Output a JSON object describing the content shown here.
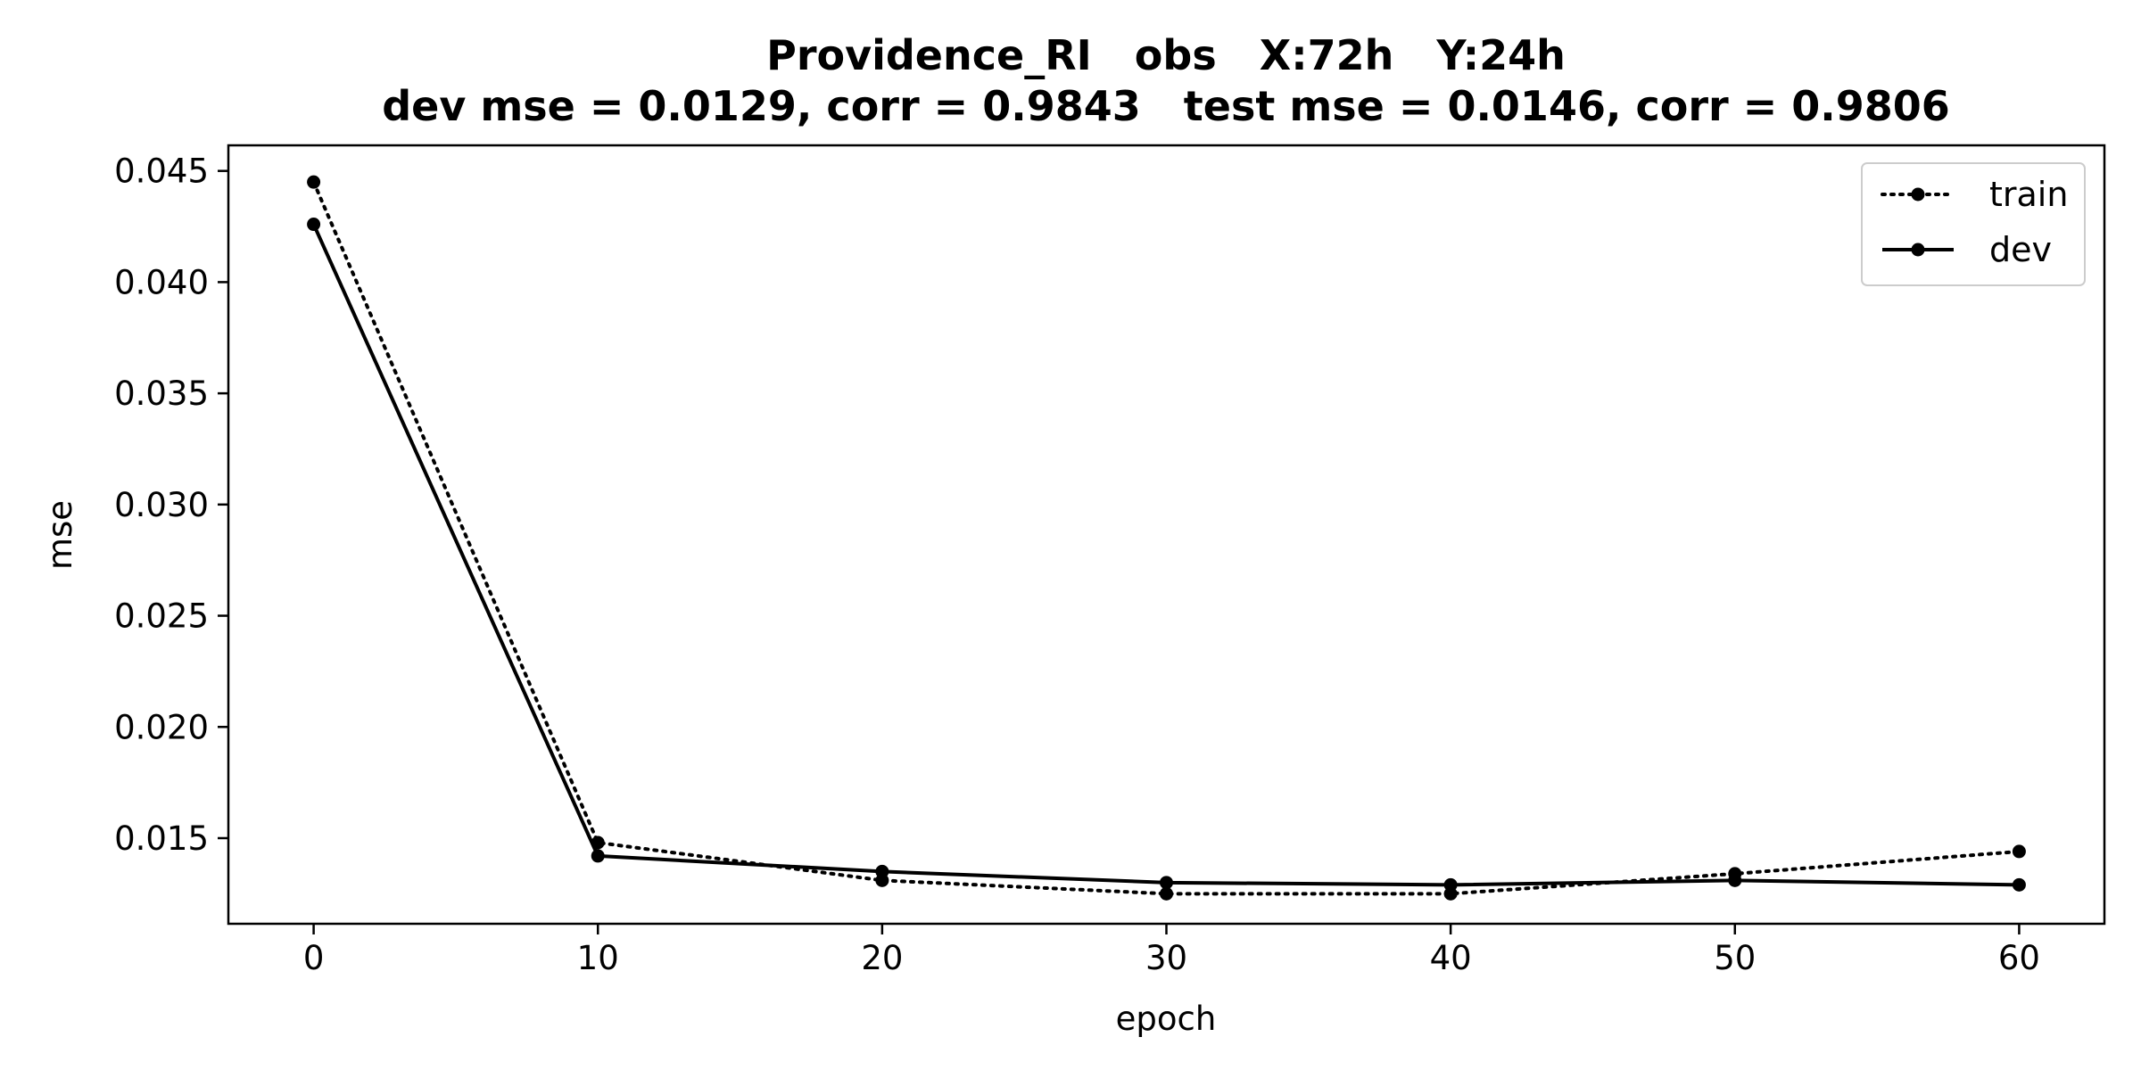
{
  "chart_data": {
    "type": "line",
    "title_line1": "Providence_RI   obs   X:72h   Y:24h",
    "title_line2": "dev mse = 0.0129, corr = 0.9843   test mse = 0.0146, corr = 0.9806",
    "xlabel": "epoch",
    "ylabel": "mse",
    "x": [
      0,
      10,
      20,
      30,
      40,
      50,
      60
    ],
    "series": [
      {
        "name": "train",
        "style": "dotted",
        "values": [
          0.0445,
          0.0148,
          0.0131,
          0.0125,
          0.0125,
          0.0134,
          0.0144
        ]
      },
      {
        "name": "dev",
        "style": "solid",
        "values": [
          0.0426,
          0.0142,
          0.0135,
          0.013,
          0.0129,
          0.0131,
          0.0129
        ]
      }
    ],
    "xlim": [
      -3,
      63
    ],
    "ylim": [
      0.01115,
      0.04615
    ],
    "xticks": [
      0,
      10,
      20,
      30,
      40,
      50,
      60
    ],
    "yticks": [
      0.015,
      0.02,
      0.025,
      0.03,
      0.035,
      0.04,
      0.045
    ],
    "ytick_labels": [
      "0.015",
      "0.020",
      "0.025",
      "0.030",
      "0.035",
      "0.040",
      "0.045"
    ],
    "grid": false,
    "legend_position": "top-right",
    "line_color": "#000000"
  }
}
